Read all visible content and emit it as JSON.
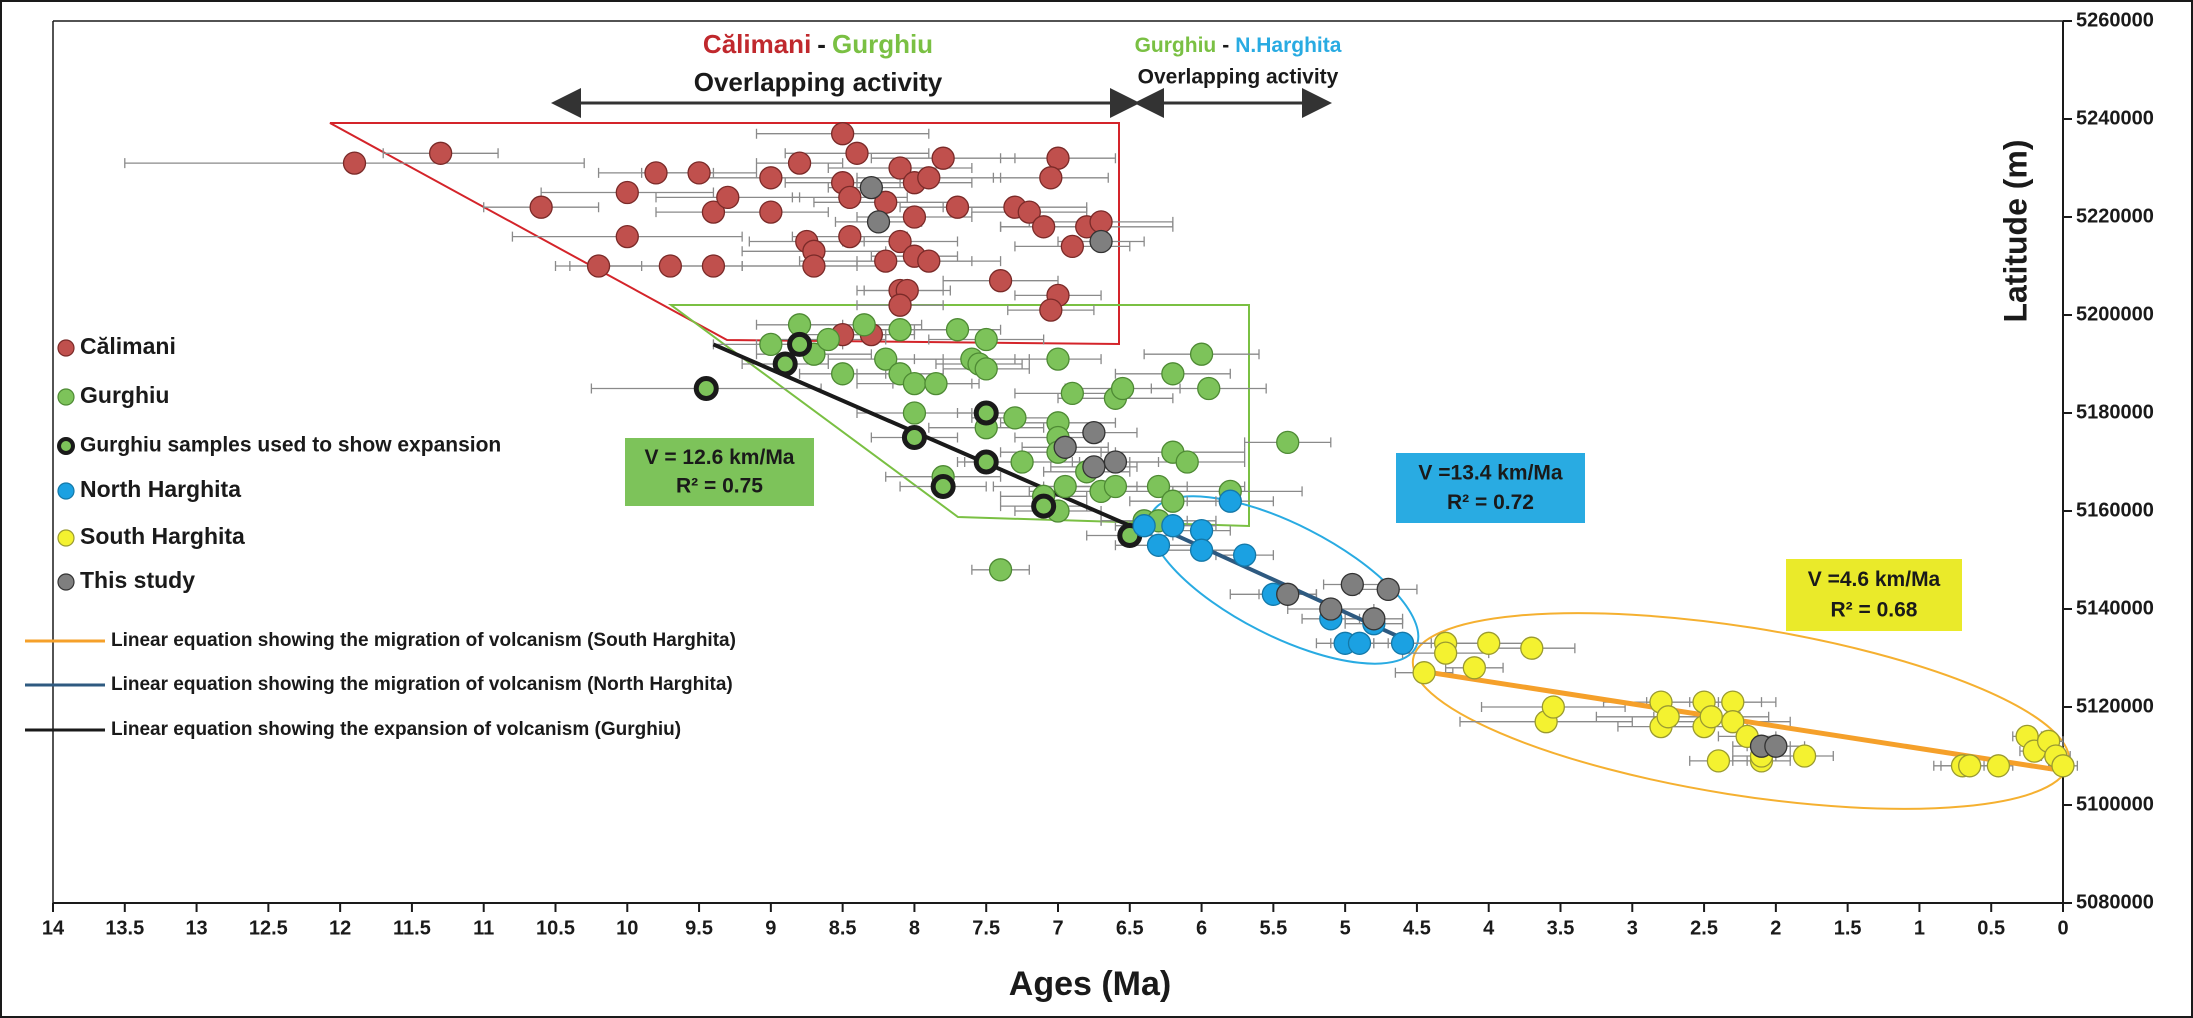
{
  "chart_data": {
    "type": "scatter",
    "xlabel": "Ages (Ma)",
    "ylabel": "Latitude (m)",
    "xlim": [
      14,
      0
    ],
    "ylim": [
      5080000,
      5260000
    ],
    "xticks": [
      14,
      13.5,
      13,
      12.5,
      12,
      11.5,
      11,
      10.5,
      10,
      9.5,
      9,
      8.5,
      8,
      7.5,
      7,
      6.5,
      6,
      5.5,
      5,
      4.5,
      4,
      3.5,
      3,
      2.5,
      2,
      1.5,
      1,
      0.5,
      0
    ],
    "yticks": [
      5080000,
      5100000,
      5120000,
      5140000,
      5160000,
      5180000,
      5200000,
      5220000,
      5240000,
      5260000
    ],
    "series": [
      {
        "name": "Călimani",
        "color": "#c0504d",
        "edgecolor": "#7a2a28",
        "x": [
          11.9,
          11.3,
          10.6,
          10.2,
          10.0,
          10.0,
          9.8,
          9.7,
          9.5,
          9.4,
          9.4,
          9.3,
          9.0,
          9.0,
          8.8,
          8.75,
          8.7,
          8.7,
          8.5,
          8.5,
          8.45,
          8.45,
          8.4,
          8.2,
          8.2,
          8.1,
          8.1,
          8.0,
          8.0,
          8.0,
          7.9,
          7.9,
          8.1,
          8.05,
          7.8,
          7.7,
          7.4,
          7.3,
          7.2,
          7.1,
          7.0,
          7.05,
          7.0,
          7.05,
          6.9,
          6.8,
          6.7,
          8.5,
          8.3,
          8.1
        ],
        "values": [
          5231000,
          5233000,
          5222000,
          5210000,
          5225000,
          5216000,
          5229000,
          5210000,
          5229000,
          5221000,
          5210000,
          5224000,
          5221000,
          5228000,
          5231000,
          5215000,
          5213000,
          5210000,
          5237000,
          5227000,
          5224000,
          5216000,
          5233000,
          5223000,
          5211000,
          5230000,
          5215000,
          5227000,
          5220000,
          5212000,
          5228000,
          5211000,
          5205000,
          5205000,
          5232000,
          5222000,
          5207000,
          5222000,
          5221000,
          5218000,
          5232000,
          5228000,
          5204000,
          5201000,
          5214000,
          5218000,
          5219000,
          5196000,
          5196000,
          5202000
        ],
        "xerr": [
          1.6,
          0.4,
          0.4,
          0.3,
          0.6,
          0.8,
          0.4,
          0.5,
          0.4,
          0.4,
          1.0,
          0.5,
          0.4,
          0.5,
          0.3,
          0.4,
          0.5,
          0.5,
          0.6,
          0.4,
          0.4,
          0.4,
          0.5,
          0.5,
          0.6,
          0.5,
          0.4,
          0.4,
          0.4,
          0.3,
          0.5,
          0.5,
          0.3,
          0.3,
          0.5,
          0.4,
          0.4,
          0.5,
          0.4,
          0.3,
          0.4,
          0.4,
          0.3,
          0.3,
          0.4,
          0.6,
          0.5,
          0.3,
          0.3,
          0.3
        ]
      },
      {
        "name": "Gurghiu",
        "color": "#7dc35a",
        "edgecolor": "#4e8a34",
        "x": [
          9.0,
          8.8,
          8.7,
          8.6,
          8.5,
          8.35,
          8.2,
          8.1,
          8.1,
          8.0,
          7.85,
          8.0,
          7.7,
          7.6,
          7.55,
          7.5,
          7.5,
          7.5,
          7.3,
          7.25,
          7.0,
          7.0,
          7.0,
          7.0,
          6.95,
          6.9,
          6.8,
          6.7,
          6.6,
          6.6,
          6.55,
          6.4,
          6.3,
          6.2,
          6.2,
          6.1,
          6.0,
          5.95,
          5.8,
          5.4,
          6.3,
          6.2,
          7.1,
          7.4,
          7.8,
          7.0
        ],
        "values": [
          5194000,
          5198000,
          5192000,
          5195000,
          5188000,
          5198000,
          5191000,
          5188000,
          5197000,
          5186000,
          5186000,
          5180000,
          5197000,
          5191000,
          5190000,
          5195000,
          5189000,
          5177000,
          5179000,
          5170000,
          5191000,
          5178000,
          5175000,
          5172000,
          5165000,
          5184000,
          5168000,
          5164000,
          5165000,
          5183000,
          5185000,
          5158000,
          5165000,
          5188000,
          5172000,
          5170000,
          5192000,
          5185000,
          5164000,
          5174000,
          5158000,
          5162000,
          5163000,
          5148000,
          5167000,
          5160000
        ],
        "xerr": [
          0.4,
          0.3,
          0.4,
          0.4,
          0.3,
          0.4,
          0.4,
          0.3,
          0.4,
          0.4,
          0.3,
          0.4,
          0.3,
          0.4,
          0.3,
          0.4,
          0.3,
          0.4,
          0.3,
          0.4,
          0.3,
          0.4,
          0.3,
          0.4,
          0.5,
          0.4,
          0.3,
          0.5,
          0.5,
          0.4,
          0.4,
          0.3,
          0.6,
          0.4,
          0.5,
          0.4,
          0.4,
          0.4,
          0.5,
          0.3,
          0.4,
          0.3,
          0.3,
          0.2,
          0.4,
          0.3
        ]
      },
      {
        "name": "Gurghiu samples used to show expansion",
        "color": "#7dc35a",
        "edgecolor": "#1a1a1a",
        "x": [
          9.45,
          8.9,
          8.8,
          8.0,
          7.8,
          7.5,
          7.5,
          7.1,
          6.5
        ],
        "values": [
          5185000,
          5190000,
          5194000,
          5175000,
          5165000,
          5180000,
          5170000,
          5161000,
          5155000
        ],
        "xerr": [
          0.8,
          0.3,
          0.3,
          0.3,
          0.3,
          0.2,
          0.2,
          0.3,
          0.3
        ]
      },
      {
        "name": "North Harghita",
        "color": "#1ba1e2",
        "edgecolor": "#1478a8",
        "x": [
          6.3,
          6.2,
          6.0,
          6.0,
          5.8,
          5.7,
          5.5,
          5.1,
          5.0,
          4.9,
          4.8,
          4.6,
          6.4
        ],
        "values": [
          5153000,
          5157000,
          5156000,
          5152000,
          5162000,
          5151000,
          5143000,
          5138000,
          5133000,
          5133000,
          5137000,
          5133000,
          5157000
        ],
        "xerr": [
          0.3,
          0.3,
          0.2,
          0.3,
          0.3,
          0.2,
          0.3,
          0.2,
          0.2,
          0.2,
          0.2,
          0.2,
          0.2
        ]
      },
      {
        "name": "South Harghita",
        "color": "#f4f230",
        "edgecolor": "#9a9a30",
        "x": [
          4.45,
          4.3,
          4.3,
          4.1,
          4.0,
          3.7,
          3.6,
          3.55,
          2.8,
          2.8,
          2.75,
          2.5,
          2.5,
          2.45,
          2.3,
          2.3,
          2.2,
          2.1,
          2.1,
          1.8,
          2.4,
          0.7,
          0.65,
          0.45,
          0.25,
          0.2,
          0.1,
          0.05,
          0.0
        ],
        "values": [
          5127000,
          5133000,
          5131000,
          5128000,
          5133000,
          5132000,
          5117000,
          5120000,
          5121000,
          5116000,
          5118000,
          5121000,
          5116000,
          5118000,
          5121000,
          5117000,
          5114000,
          5109000,
          5110000,
          5110000,
          5109000,
          5108000,
          5108000,
          5108000,
          5114000,
          5111000,
          5113000,
          5110000,
          5108000
        ],
        "xerr": [
          0.2,
          0.3,
          0.3,
          0.2,
          0.3,
          0.3,
          0.6,
          0.5,
          0.4,
          0.3,
          0.5,
          0.4,
          0.3,
          0.4,
          0.3,
          0.4,
          0.2,
          0.2,
          0.2,
          0.2,
          0.2,
          0.2,
          0.2,
          0.1,
          0.1,
          0.1,
          0.1,
          0.1,
          0.1
        ]
      },
      {
        "name": "This study",
        "color": "#7f7f7f",
        "edgecolor": "#333333",
        "x": [
          8.3,
          8.25,
          6.7,
          6.95,
          6.75,
          6.75,
          6.6,
          5.4,
          5.1,
          4.8,
          4.7,
          4.95,
          2.1,
          2.0
        ],
        "values": [
          5226000,
          5219000,
          5215000,
          5173000,
          5176000,
          5169000,
          5170000,
          5143000,
          5140000,
          5138000,
          5144000,
          5145000,
          5112000,
          5112000
        ],
        "xerr": [
          0.3,
          0.3,
          0.3,
          0.3,
          0.3,
          0.3,
          0.3,
          0.2,
          0.3,
          0.2,
          0.2,
          0.2,
          0.2,
          0.2
        ]
      }
    ],
    "trendlines": [
      {
        "name": "Linear equation showing the migration of volcanism (South Harghita)",
        "color": "#f5a02a",
        "x": [
          4.4,
          0
        ],
        "values": [
          5127000,
          5107000
        ]
      },
      {
        "name": "Linear equation showing the migration of volcanism (North Harghita)",
        "color": "#2e5a80",
        "x": [
          6.4,
          4.6
        ],
        "values": [
          5158000,
          5134000
        ]
      },
      {
        "name": "Linear equation showing the expansion of volcanism (Gurghiu)",
        "color": "#1a1a1a",
        "x": [
          9.4,
          6.5
        ],
        "values": [
          5194000,
          5157000
        ]
      }
    ],
    "annotations": [
      {
        "headline": [
          {
            "text": "Călimani",
            "color": "#c0282d"
          },
          {
            "text": "-",
            "color": "#1a1a1a"
          },
          {
            "text": "Gurghiu",
            "color": "#7ac043"
          }
        ],
        "caption": "Overlapping activity"
      },
      {
        "headline": [
          {
            "text": "Gurghiu",
            "color": "#7ac043"
          },
          {
            "text": "-",
            "color": "#1a1a1a"
          },
          {
            "text": "N.Harghita",
            "color": "#29abe2"
          }
        ],
        "caption": "Overlapping activity"
      }
    ],
    "rate_boxes": [
      {
        "fill": "#7dc35a",
        "lines": [
          "V = 12.6 km/Ma",
          "R² = 0.75"
        ]
      },
      {
        "fill": "#29abe2",
        "lines": [
          "V =13.4 km/Ma",
          "R² = 0.72"
        ]
      },
      {
        "fill": "#eaea2a",
        "lines": [
          "V =4.6 km/Ma",
          "R² = 0.68"
        ]
      }
    ]
  }
}
